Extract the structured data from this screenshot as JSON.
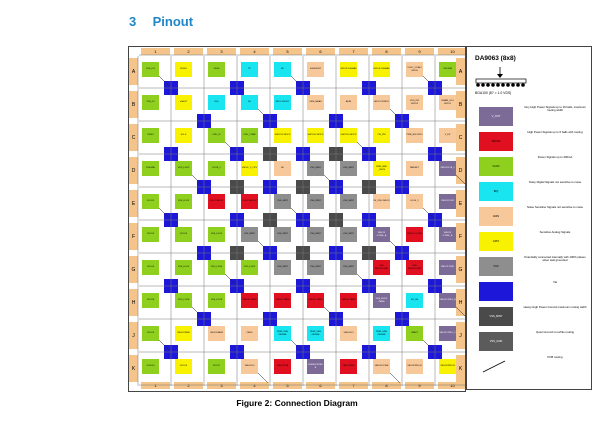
{
  "section": {
    "number": "3",
    "title": "Pinout"
  },
  "caption": "Figure 2: Connection Diagram",
  "diagram": {
    "columns": [
      "1",
      "2",
      "3",
      "4",
      "5",
      "6",
      "7",
      "8",
      "9",
      "10"
    ],
    "rows": [
      "A",
      "B",
      "C",
      "D",
      "E",
      "F",
      "G",
      "H",
      "J",
      "K"
    ],
    "colors": {
      "yellow": "#f8f200",
      "green": "#8fcf1e",
      "cyan": "#18e5f0",
      "peach": "#f7c89a",
      "purple": "#7d6b97",
      "red": "#e01020",
      "gray": "#8e8e8e",
      "dgray": "#4a4a4a",
      "blue": "#1d18d9",
      "orange": "#f4c48a"
    },
    "pads": {
      "A": [
        [
          "green",
          "VSS_IO1"
        ],
        [
          "yellow",
          "VDDIO"
        ],
        [
          "green",
          "VSSS"
        ],
        [
          "cyan",
          "TP"
        ],
        [
          "cyan",
          "NC"
        ],
        [
          "peach",
          "SGMOUNT"
        ],
        [
          "yellow",
          "GPIO3 /SIGRAD"
        ],
        [
          "yellow",
          "GPIO4 /SIGRAD"
        ],
        [
          "peach",
          "VLDO_1 DAC/ GPIO5"
        ],
        [
          "green",
          "VSSTHR"
        ]
      ],
      "B": [
        [
          "green",
          "VSS_IO"
        ],
        [
          "yellow",
          "nSHUT"
        ],
        [
          "cyan",
          "IRQ"
        ],
        [
          "cyan",
          "SD"
        ],
        [
          "cyan",
          "NFC3 /GPIO1"
        ],
        [
          "peach",
          "OEM_MEAS"
        ],
        [
          "peach",
          "ADIN"
        ],
        [
          "peach",
          "LED/CONTROL"
        ],
        [
          "peach",
          "VDD_INT /GPIO2"
        ],
        [
          "peach",
          "VMAIN_LDO /GPIO1"
        ]
      ],
      "C": [
        [
          "green",
          "VSSIO"
        ],
        [
          "yellow",
          "SCLK"
        ],
        [
          "green",
          "VDD_IO"
        ],
        [
          "green",
          "VDD_CORE"
        ],
        [
          "yellow",
          "SGPIO3 /GPIO2"
        ],
        [
          "yellow",
          "SGPIO4 /GPIO2"
        ],
        [
          "yellow",
          "SGPIO5 /GPIO2"
        ],
        [
          "yellow",
          "ON_PM"
        ],
        [
          "peach",
          "PWR_EN /GPIO"
        ],
        [
          "peach",
          "V_EP"
        ]
      ],
      "D": [
        [
          "green",
          "VSSGND"
        ],
        [
          "green",
          "VDD_LDO2"
        ],
        [
          "green",
          "LDO8_1"
        ],
        [
          "yellow",
          "VMON _5_OPV"
        ],
        [
          "peach",
          "SD"
        ],
        [
          "gray",
          "VSS_MINT"
        ],
        [
          "gray",
          "VSS_MINT"
        ],
        [
          "yellow",
          "PWR_BND _VBUS"
        ],
        [
          "peach",
          "NRESET"
        ],
        [
          "purple",
          "VBUCKD /B_1"
        ]
      ],
      "E": [
        [
          "green",
          "VLDO3"
        ],
        [
          "green",
          "VSS_LDO3"
        ],
        [
          "red",
          "VLDO /BUCK"
        ],
        [
          "red",
          "VLDO /BUCK2"
        ],
        [
          "gray",
          "VSS_MINT"
        ],
        [
          "gray",
          "VSS_MINT"
        ],
        [
          "gray",
          "VSS_MINT"
        ],
        [
          "peach",
          "VS_VDD /SRIO1"
        ],
        [
          "peach",
          "LDO4_1"
        ],
        [
          "purple",
          "VBUCK2 /B2"
        ]
      ],
      "F": [
        [
          "green",
          "VLDO4"
        ],
        [
          "green",
          "VLDO5"
        ],
        [
          "green",
          "VSS_LDO4"
        ],
        [
          "gray",
          "VSS_MINT"
        ],
        [
          "gray",
          "VSS_MINT"
        ],
        [
          "gray",
          "VSS_MINT"
        ],
        [
          "gray",
          "VSS_MINT"
        ],
        [
          "purple",
          "VBUCK /CORE_A"
        ],
        [
          "red",
          "VBUCK /CORE"
        ],
        [
          "purple",
          "VBUCK /CORE_B"
        ]
      ],
      "G": [
        [
          "green",
          "VLDO6"
        ],
        [
          "green",
          "VSS_LDO5"
        ],
        [
          "green",
          "VDD_LDO6"
        ],
        [
          "green",
          "VDD_LDO5"
        ],
        [
          "gray",
          "VSS_MINT"
        ],
        [
          "gray",
          "VSS_MINT"
        ],
        [
          "gray",
          "VSS_MINT"
        ],
        [
          "red",
          "VSS /BUCKCORE"
        ],
        [
          "red",
          "VSS /BUCKCORE"
        ],
        [
          "purple",
          "VBUCK /PRO"
        ]
      ],
      "H": [
        [
          "green",
          "VLDO8"
        ],
        [
          "green",
          "VDD_LDO8"
        ],
        [
          "green",
          "VSS_LDO8"
        ],
        [
          "red",
          "VBUCK /MEM"
        ],
        [
          "red",
          "VBUCK /MEM"
        ],
        [
          "red",
          "VBUCK /MEM"
        ],
        [
          "red",
          "VBUCK /MEM"
        ],
        [
          "purple",
          "VSS_BUCK /MEM"
        ],
        [
          "cyan",
          "SD_SB"
        ],
        [
          "purple",
          "VBUCK /PRO_B"
        ]
      ],
      "J": [
        [
          "green",
          "VLDO9"
        ],
        [
          "yellow",
          "VBUCKPERI"
        ],
        [
          "peach",
          "VBUCKMEM"
        ],
        [
          "peach",
          "VBUS"
        ],
        [
          "cyan",
          "PERI_SNS /SENSE"
        ],
        [
          "cyan",
          "PERI_SNS /SENSE"
        ],
        [
          "peach",
          "VBUCKIO"
        ],
        [
          "cyan",
          "PERI_SNS /SENSE"
        ],
        [
          "green",
          "VBAT1"
        ],
        [
          "purple",
          "VBUCK /PRO_C"
        ]
      ],
      "K": [
        [
          "green",
          "VLDO10"
        ],
        [
          "yellow",
          "VLDO9"
        ],
        [
          "green",
          "VLDO7"
        ],
        [
          "peach",
          "VBUCKIO"
        ],
        [
          "red",
          "VBUCKIOB"
        ],
        [
          "purple",
          "VSSBUCKPRO B"
        ],
        [
          "red",
          "VBUCKPRO"
        ],
        [
          "peach",
          "VBUCKCORE"
        ],
        [
          "peach",
          "VBUCKPRO B"
        ],
        [
          "yellow",
          "VBUCKPRO B"
        ]
      ]
    }
  },
  "legend": {
    "title": "DA9063 (8x8)",
    "package": "BGA100 (8? = 1.0 VDS)",
    "items": [
      {
        "color": "#7d6b97",
        "swatch": "V_OUT",
        "text": "Very High Power Signals up to 16 balls, maximum routing width"
      },
      {
        "color": "#e01020",
        "swatch": "VBUCK",
        "text": "High Power Signals up to 6 balls with routing"
      },
      {
        "color": "#8fcf1e",
        "swatch": "VLDO",
        "text": "Power Signals up to 300mA"
      },
      {
        "color": "#18e5f0",
        "swatch": "IRQ",
        "text": "Noisy Digital Signals not sensitive to noise"
      },
      {
        "color": "#f7c89a",
        "swatch": "ADIN",
        "text": "Noise Sensitive Signals not sensitive to noise"
      },
      {
        "color": "#f8f200",
        "swatch": "GPIO",
        "text": "Sensitive Analog Signals"
      },
      {
        "color": "#8e8e8e",
        "swatch": "VSS",
        "text": "Potentially connected internally with 100% planes when well grounded"
      },
      {
        "color": "#1d18d9",
        "swatch": "",
        "text": "Via"
      },
      {
        "color": "#4a4a4a",
        "swatch": "VSS_MINT",
        "text": "Heavy High Power Ground maximum routing width"
      },
      {
        "color": "#5b5b5b",
        "swatch": "VSS_GND",
        "text": "Quiet Ground not while routing"
      },
      {
        "color": "#ffffff",
        "swatch": "",
        "text": "PCB routing"
      }
    ]
  }
}
